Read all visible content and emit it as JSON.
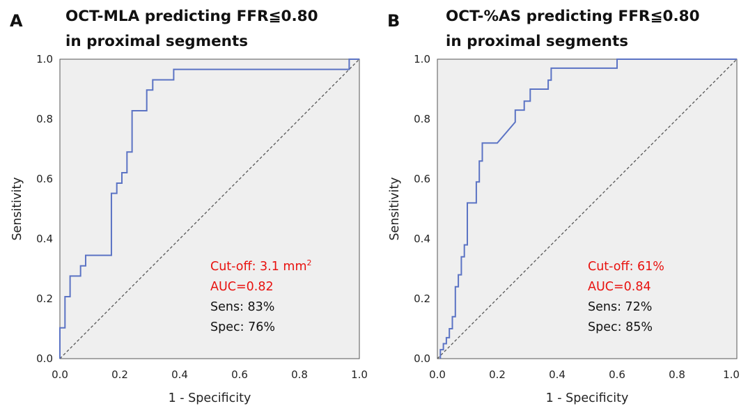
{
  "colors": {
    "roc_line": "#5b73c4",
    "plot_background": "#efefef",
    "highlight_text": "#e8120f",
    "normal_text": "#111111",
    "diagonal": "#555555"
  },
  "chart_data": [
    {
      "type": "line",
      "panel_letter": "A",
      "title_line1": "OCT-MLA predicting FFR≦0.80",
      "title_line2": "in proximal segments",
      "xlabel": "1 - Specificity",
      "ylabel": "Sensitivity",
      "xlim": [
        0,
        1
      ],
      "ylim": [
        0,
        1
      ],
      "x_ticks": [
        "0.0",
        "0.2",
        "0.4",
        "0.6",
        "0.8",
        "1.0"
      ],
      "y_ticks": [
        "0.0",
        "0.2",
        "0.4",
        "0.6",
        "0.8",
        "1.0"
      ],
      "grid": false,
      "reference_line": true,
      "series": [
        {
          "x": [
            0,
            0,
            0.017,
            0.017,
            0.034,
            0.034,
            0.069,
            0.069,
            0.086,
            0.086,
            0.172,
            0.172,
            0.19,
            0.19,
            0.207,
            0.207,
            0.224,
            0.224,
            0.241,
            0.241,
            0.29,
            0.29,
            0.31,
            0.31,
            0.38,
            0.38,
            0.966,
            0.966,
            1.0
          ],
          "y": [
            0,
            0.103,
            0.103,
            0.207,
            0.207,
            0.276,
            0.276,
            0.31,
            0.31,
            0.345,
            0.345,
            0.552,
            0.552,
            0.586,
            0.586,
            0.621,
            0.621,
            0.69,
            0.69,
            0.828,
            0.828,
            0.897,
            0.897,
            0.931,
            0.931,
            0.966,
            0.966,
            1.0,
            1.0
          ]
        }
      ],
      "annotations": {
        "cutoff_prefix": "Cut-off: 3.1 mm",
        "cutoff_superscript": "2",
        "auc": "AUC=0.82",
        "sens": "Sens: 83%",
        "spec": "Spec: 76%"
      }
    },
    {
      "type": "line",
      "panel_letter": "B",
      "title_line1": "OCT-%AS predicting FFR≦0.80",
      "title_line2": "in proximal segments",
      "xlabel": "1 - Specificity",
      "ylabel": "Sensitivity",
      "xlim": [
        0,
        1
      ],
      "ylim": [
        0,
        1
      ],
      "x_ticks": [
        "0.0",
        "0.2",
        "0.4",
        "0.6",
        "0.8",
        "1.0"
      ],
      "y_ticks": [
        "0.0",
        "0.2",
        "0.4",
        "0.6",
        "0.8",
        "1.0"
      ],
      "grid": false,
      "reference_line": true,
      "series": [
        {
          "x": [
            0.01,
            0.01,
            0.02,
            0.02,
            0.03,
            0.03,
            0.04,
            0.04,
            0.05,
            0.05,
            0.06,
            0.06,
            0.07,
            0.07,
            0.08,
            0.08,
            0.09,
            0.09,
            0.1,
            0.1,
            0.12,
            0.12,
            0.13,
            0.13,
            0.14,
            0.14,
            0.15,
            0.15,
            0.2,
            0.26,
            0.26,
            0.29,
            0.29,
            0.31,
            0.31,
            0.33,
            0.33,
            0.37,
            0.37,
            0.38,
            0.38,
            0.4,
            0.4,
            0.6,
            0.6,
            1.0
          ],
          "y": [
            0.0,
            0.03,
            0.03,
            0.05,
            0.05,
            0.07,
            0.07,
            0.1,
            0.1,
            0.14,
            0.14,
            0.24,
            0.24,
            0.28,
            0.28,
            0.34,
            0.34,
            0.38,
            0.38,
            0.52,
            0.52,
            0.52,
            0.52,
            0.59,
            0.59,
            0.66,
            0.66,
            0.72,
            0.72,
            0.79,
            0.83,
            0.83,
            0.86,
            0.86,
            0.9,
            0.9,
            0.9,
            0.9,
            0.93,
            0.93,
            0.97,
            0.97,
            0.97,
            0.97,
            1.0,
            1.0
          ]
        }
      ],
      "annotations": {
        "cutoff_prefix": "Cut-off: 61%",
        "cutoff_superscript": "",
        "auc": "AUC=0.84",
        "sens": "Sens: 72%",
        "spec": "Spec: 85%"
      }
    }
  ]
}
